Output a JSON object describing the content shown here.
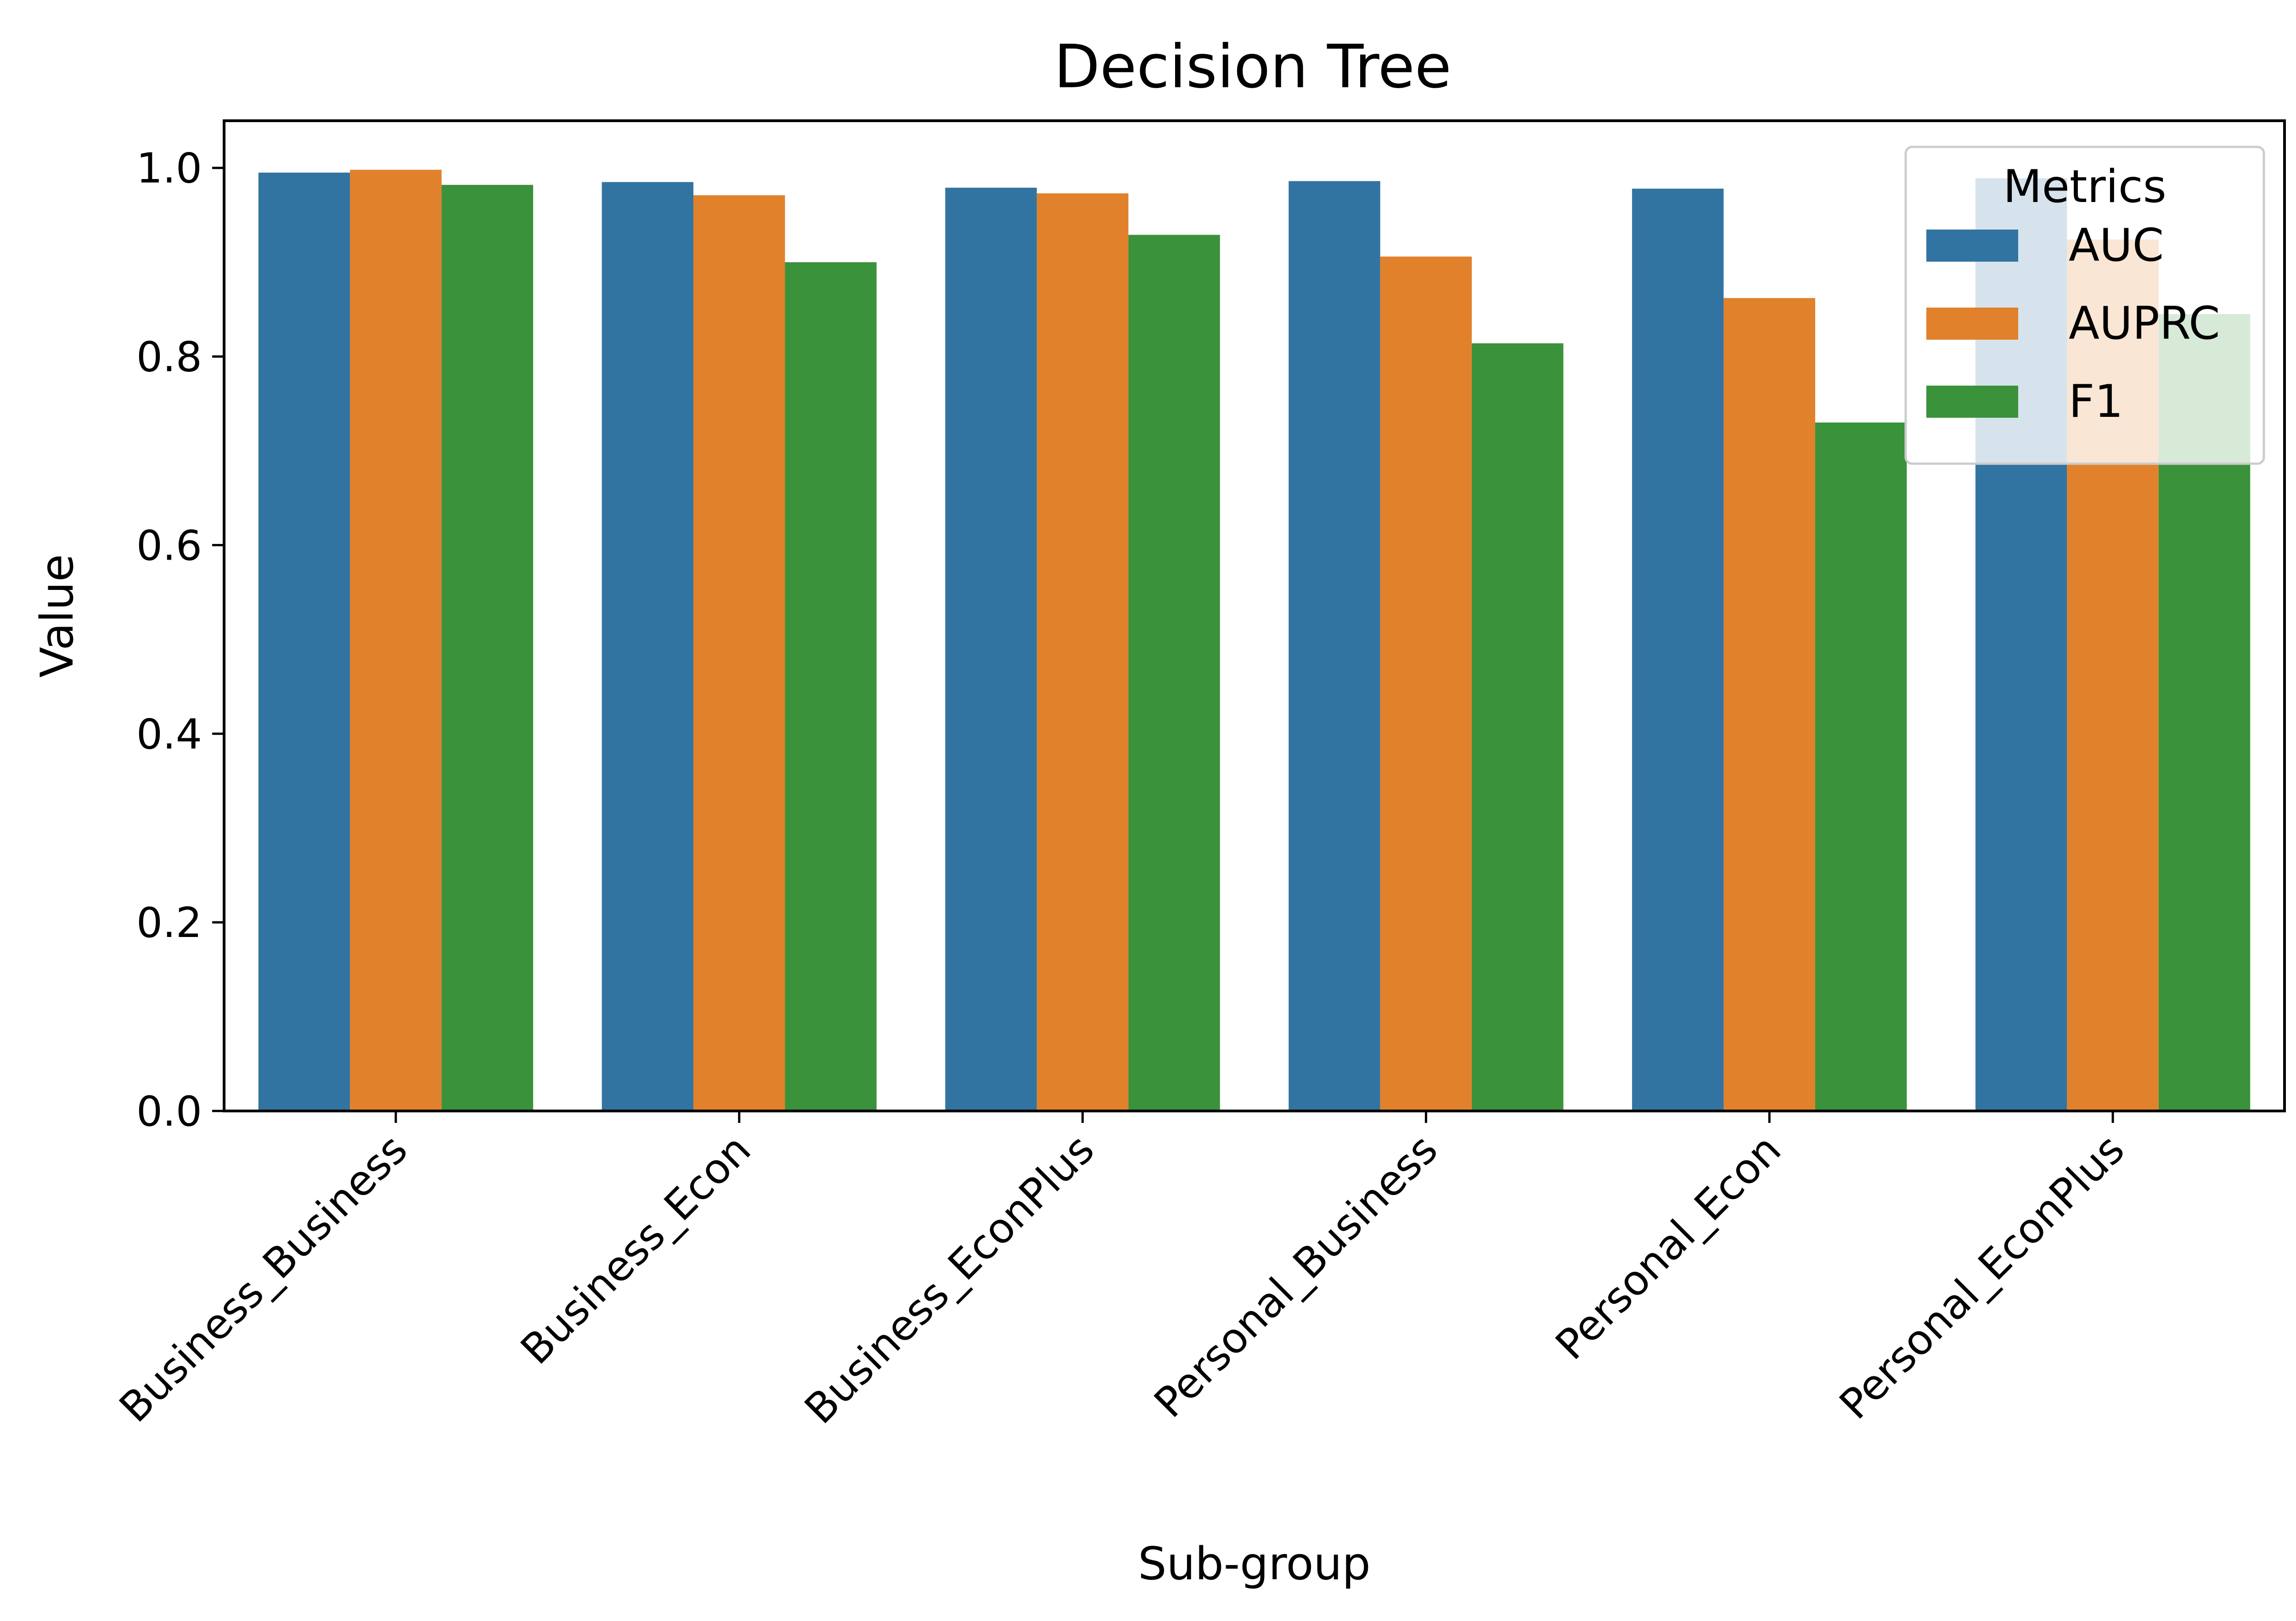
{
  "chart_data": {
    "type": "bar",
    "title": "Decision Tree",
    "xlabel": "Sub-group",
    "ylabel": "Value",
    "ylim": [
      0,
      1.05
    ],
    "yticks": [
      0.0,
      0.2,
      0.4,
      0.6,
      0.8,
      1.0
    ],
    "ytick_labels": [
      "0.0",
      "0.2",
      "0.4",
      "0.6",
      "0.8",
      "1.0"
    ],
    "categories": [
      "Business_Business",
      "Business_Econ",
      "Business_EconPlus",
      "Personal_Business",
      "Personal_Econ",
      "Personal_EconPlus"
    ],
    "series": [
      {
        "name": "AUC",
        "color": "#3274a1",
        "values": [
          0.995,
          0.985,
          0.979,
          0.986,
          0.978,
          0.989
        ]
      },
      {
        "name": "AUPRC",
        "color": "#e1812c",
        "values": [
          0.998,
          0.971,
          0.973,
          0.906,
          0.862,
          0.924
        ]
      },
      {
        "name": "F1",
        "color": "#3a923a",
        "values": [
          0.982,
          0.9,
          0.929,
          0.814,
          0.73,
          0.845
        ]
      }
    ],
    "legend": {
      "title": "Metrics",
      "position": "upper-right"
    },
    "grid": false
  }
}
